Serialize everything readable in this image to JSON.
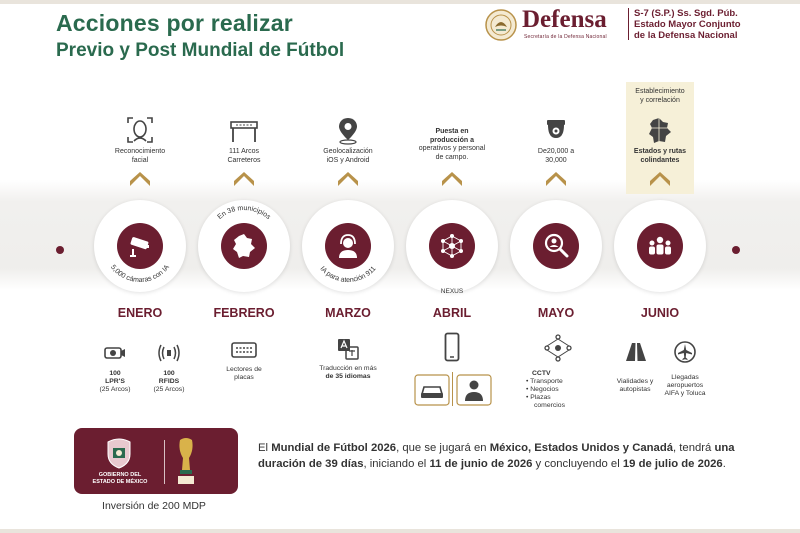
{
  "header": {
    "title_line1": "Acciones por realizar",
    "title_line2": "Previo y Post Mundial de Fútbol",
    "logo_word": "Defensa",
    "logo_sub": "Secretaría de la Defensa Nacional",
    "right_line1": "S-7 (S.P.) Ss. Sgd. Púb.",
    "right_line2": "Estado Mayor Conjunto",
    "right_line3": "de la Defensa Nacional"
  },
  "colors": {
    "accent": "#6b1e30",
    "green": "#2a6a4e",
    "gold": "#b8924a",
    "highlight": "#f6f0d8"
  },
  "timeline": {
    "enero": {
      "month": "ENERO",
      "top_icon": "face-recognition-icon",
      "top_label": [
        "Reconocimiento",
        "facial"
      ],
      "disc_icon": "security-camera-icon",
      "arc_text": "5,000 cámaras con IA",
      "sub1_icon": "lpr-camera-icon",
      "sub1_line1": "100",
      "sub1_line2": "LPR'S",
      "sub1_line3": "(25 Arcos)",
      "sub2_icon": "rfid-icon",
      "sub2_line1": "100",
      "sub2_line2": "RFIDS",
      "sub2_line3": "(25 Arcos)"
    },
    "febrero": {
      "month": "FEBRERO",
      "top_icon": "road-arch-icon",
      "top_label": [
        "111 Arcos",
        "Carreteros"
      ],
      "disc_icon": "state-map-icon",
      "arc_text": "En 38 municipios",
      "sub1_icon": "plate-reader-icon",
      "sub1_line1": "Lectores de",
      "sub1_line2": "placas"
    },
    "marzo": {
      "month": "MARZO",
      "top_icon": "location-pin-icon",
      "top_label": [
        "Geolocalización",
        "iOS y Android"
      ],
      "disc_icon": "headset-operator-icon",
      "arc_text": "IA para atención 911",
      "sub1_icon": "translate-icon",
      "sub1_line1": "Traducción en más",
      "sub1_line2": "de 35 idiomas"
    },
    "abril": {
      "month": "ABRIL",
      "top_label": [
        "Puesta en",
        "producción a",
        "operativos y personal",
        "de campo."
      ],
      "disc_icon": "network-nodes-icon",
      "nexus": "NEXUS",
      "sub1_icon": "smartphone-icon",
      "sub2_icon": "car-icon",
      "sub3_icon": "person-icon"
    },
    "mayo": {
      "month": "MAYO",
      "top_icon": "dome-camera-icon",
      "top_label": [
        "De20,000 a",
        "30,000"
      ],
      "disc_icon": "magnifier-person-icon",
      "sub1_icon": "cctv-network-icon",
      "sub1_title": "CCTV",
      "sub1_items": [
        "• Transporte",
        "• Negocios",
        "• Plazas",
        "  comercios"
      ]
    },
    "junio": {
      "month": "JUNIO",
      "top_label_a": [
        "Establecimiento",
        "y correlación"
      ],
      "top_icon": "states-map-icon",
      "top_label_b": [
        "Estados y rutas",
        "colindantes"
      ],
      "disc_icon": "crowd-icon",
      "sub1_icon": "highway-icon",
      "sub1_line1": "Vialidades y",
      "sub1_line2": "autopistas",
      "sub2_icon": "airport-icon",
      "sub2_line1": "Llegadas",
      "sub2_line2": "aeropuertos",
      "sub2_line3": "AIFA y Toluca"
    }
  },
  "bottom": {
    "gob_line1": "GOBIERNO DEL",
    "gob_line2": "ESTADO DE MÉXICO",
    "investment": "Inversión de 200 MDP",
    "para_1": "El ",
    "para_b1": "Mundial de Fútbol 2026",
    "para_2": ", que se jugará en ",
    "para_b2": "México, Estados Unidos y Canadá",
    "para_3": ", tendrá ",
    "para_b3": "una duración de 39 días",
    "para_4": ", iniciando el ",
    "para_b4": "11 de junio de 2026",
    "para_5": " y concluyendo el ",
    "para_b5": "19 de julio de 2026",
    "para_6": "."
  }
}
